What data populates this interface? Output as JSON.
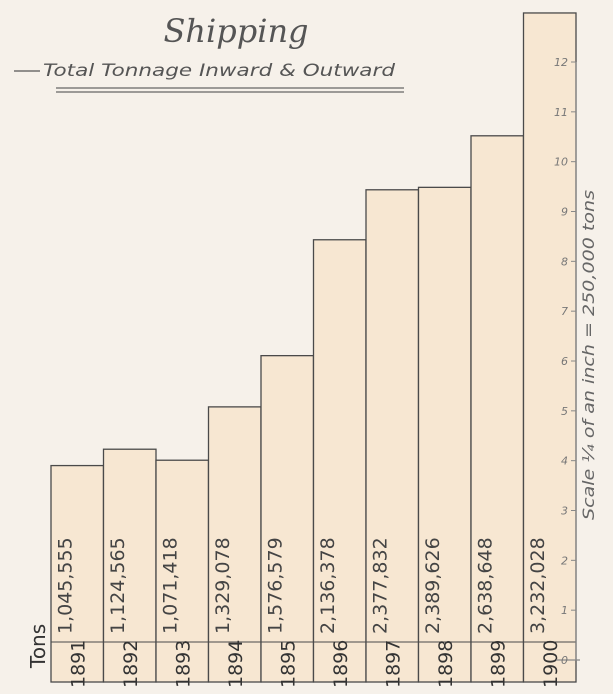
{
  "chart_data": {
    "type": "bar",
    "title": "Shipping",
    "subtitle": "Total Tonnage Inward & Outward",
    "unit_label": "Tons",
    "scale_note": "Scale ¼ of an inch = 250,000 tons",
    "categories": [
      "1891",
      "1892",
      "1893",
      "1894",
      "1895",
      "1896",
      "1897",
      "1898",
      "1899",
      "1900"
    ],
    "value_labels": [
      "1,045,555",
      "1,124,565",
      "1,071,418",
      "1,329,078",
      "1,576,579",
      "2,136,378",
      "2,377,832",
      "2,389,626",
      "2,638,648",
      "3,232,028"
    ],
    "values": [
      1045555,
      1124565,
      1071418,
      1329078,
      1576579,
      2136378,
      2377832,
      2389626,
      2638648,
      3232028
    ],
    "yticks": [
      "0",
      "1",
      "2",
      "3",
      "4",
      "5",
      "6",
      "7",
      "8",
      "9",
      "10",
      "11",
      "12"
    ],
    "ylim": [
      0,
      12
    ],
    "tick_unit_tons": 250000,
    "colors": {
      "bar_fill": "#f7e7d2",
      "ink": "#4a4a4a",
      "paper": "#f6f1ea"
    }
  }
}
